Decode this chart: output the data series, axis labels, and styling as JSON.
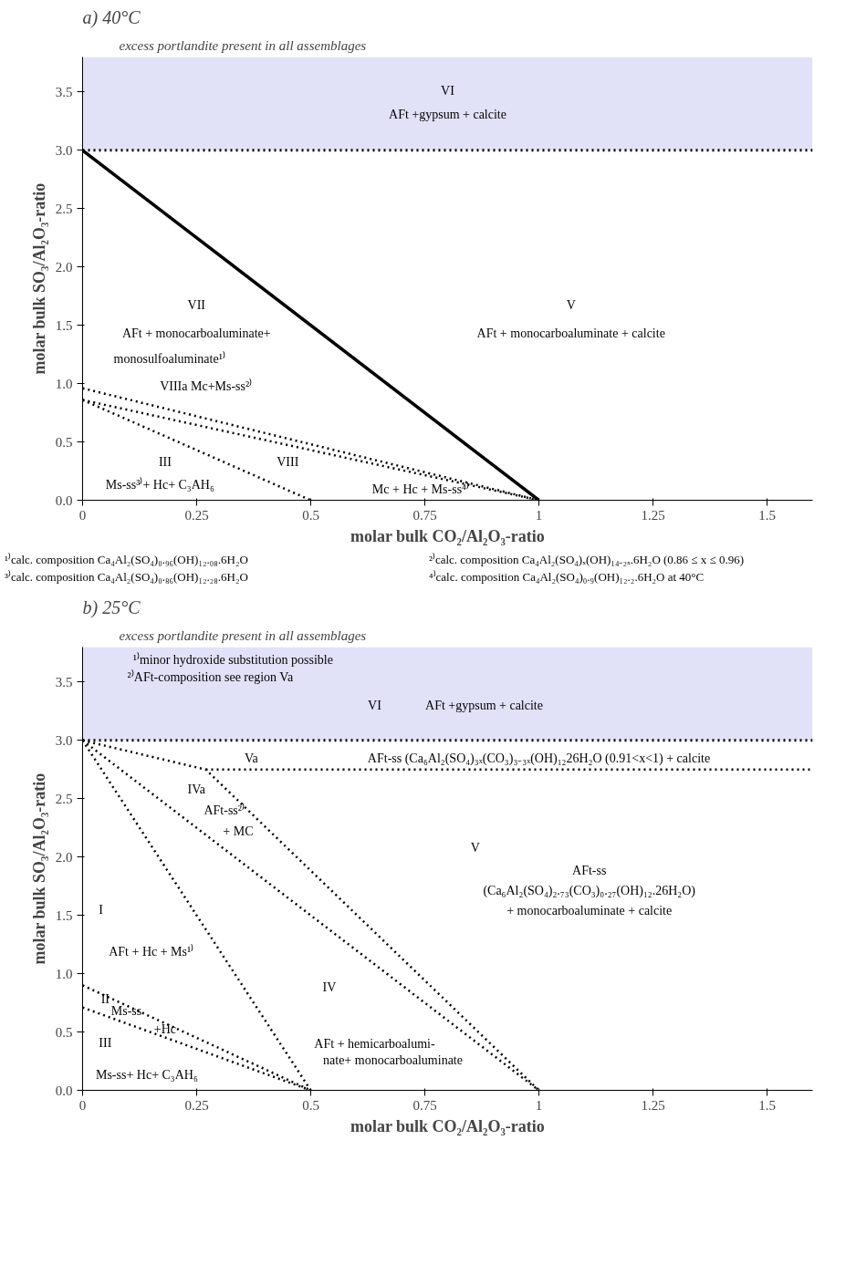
{
  "chart_data": [
    {
      "type": "line",
      "title": "a) 40°C",
      "subtitle": "excess portlandite present in all assemblages",
      "xlabel": "molar bulk CO₂/Al₂O₃-ratio",
      "ylabel": "molar bulk SO₃/Al₂O₃-ratio",
      "xlim": [
        0,
        1.6
      ],
      "ylim": [
        0,
        3.8
      ],
      "xticks": [
        0,
        0.25,
        0.5,
        0.75,
        1,
        1.25,
        1.5
      ],
      "yticks": [
        {
          "value": 0,
          "label": "0.0"
        },
        0.5,
        {
          "value": 1,
          "label": "1.0"
        },
        1.5,
        {
          "value": 2,
          "label": "2.0"
        },
        2.5,
        {
          "value": 3,
          "label": "3.0"
        },
        3.5
      ],
      "grid": false,
      "series": [
        {
          "color": "#000000",
          "line_style": "solid",
          "x": [
            0,
            1
          ],
          "values": [
            3.0,
            0
          ]
        },
        {
          "color": "#000000",
          "line_style": "dotted",
          "x": [
            0,
            1
          ],
          "values": [
            0.96,
            0
          ]
        },
        {
          "color": "#000000",
          "line_style": "dotted",
          "x": [
            0,
            1
          ],
          "values": [
            0.86,
            0
          ]
        },
        {
          "color": "#000000",
          "line_style": "dotted",
          "x": [
            0,
            0.5
          ],
          "values": [
            0.86,
            0
          ]
        }
      ],
      "ref_lines": [
        {
          "axis": "y",
          "value": 3.0,
          "color": "#000000",
          "line_style": "dotted"
        }
      ],
      "bands": [
        {
          "axis": "y",
          "from": 3.0,
          "to": 3.8,
          "color": "#e1e1f8"
        }
      ],
      "annotations": [
        "VI",
        "AFt +gypsum + calcite",
        "VII",
        "AFt + monocarboaluminate+",
        "monosulfoaluminate¹⁾",
        "V",
        "AFt + monocarboaluminate + calcite",
        "VIIIa Mc+Ms-ss²⁾",
        "III",
        "Ms-ss³⁾+ Hc+ C₃AH₆",
        "VIII",
        "Mc + Hc + Ms-ss⁴⁾",
        "¹⁾calc. composition Ca₄Al₂(SO₄)₀.₉₆(OH)₁₂.₀₈.6H₂O",
        "²⁾calc. composition Ca₄Al₂(SO₄)ₓ(OH)₁₄₋₂ₓ.6H₂O (0.86 ≤ x ≤ 0.96)",
        "³⁾calc. composition Ca₄Al₂(SO₄)₀.₈₆(OH)₁₂.₂₈.6H₂O",
        "⁴⁾calc. composition Ca₄Al₂(SO₄)₀.₉(OH)₁₂.₂.6H₂O at 40°C"
      ]
    },
    {
      "type": "line",
      "title": "b) 25°C",
      "subtitle": "excess portlandite present in all assemblages",
      "xlabel": "molar bulk CO₂/Al₂O₃-ratio",
      "ylabel": "molar bulk SO₃/Al₂O₃-ratio",
      "xlim": [
        0,
        1.6
      ],
      "ylim": [
        0,
        3.8
      ],
      "xticks": [
        0,
        0.25,
        0.5,
        0.75,
        1,
        1.25,
        1.5
      ],
      "yticks": [
        {
          "value": 0,
          "label": "0.0"
        },
        0.5,
        {
          "value": 1,
          "label": "1.0"
        },
        1.5,
        {
          "value": 2,
          "label": "2.0"
        },
        2.5,
        {
          "value": 3,
          "label": "3.0"
        },
        3.5
      ],
      "grid": false,
      "series": [
        {
          "color": "#000000",
          "line_style": "dotted",
          "x": [
            0,
            0.5
          ],
          "values": [
            3.0,
            0
          ]
        },
        {
          "color": "#000000",
          "line_style": "dotted",
          "x": [
            0,
            1
          ],
          "values": [
            3.0,
            0
          ]
        },
        {
          "color": "#000000",
          "line_style": "dotted",
          "x": [
            0,
            0.27,
            1
          ],
          "values": [
            3.0,
            2.75,
            0
          ]
        },
        {
          "color": "#000000",
          "line_style": "dotted",
          "x": [
            0.27,
            1.6
          ],
          "values": [
            2.75,
            2.75
          ]
        },
        {
          "color": "#000000",
          "line_style": "dotted",
          "x": [
            0,
            0.5
          ],
          "values": [
            0.9,
            0
          ]
        },
        {
          "color": "#000000",
          "line_style": "dotted",
          "x": [
            0,
            0.5
          ],
          "values": [
            0.71,
            0
          ]
        }
      ],
      "ref_lines": [
        {
          "axis": "y",
          "value": 3.0,
          "color": "#000000",
          "line_style": "dotted"
        }
      ],
      "bands": [
        {
          "axis": "y",
          "from": 3.0,
          "to": 3.8,
          "color": "#e1e1f8"
        }
      ],
      "annotations": [
        "¹⁾minor hydroxide substitution possible",
        "²⁾AFt-composition see region Va",
        "VI",
        "AFt +gypsum + calcite",
        "Va",
        "AFt-ss (Ca₆Al₂(SO₄)₃ₓ(CO₃)₃₋₃ₓ(OH)₁₂26H₂O (0.91<x<1) + calcite",
        "IVa",
        "AFt-ss²⁾",
        "+ MC",
        "V",
        "AFt-ss",
        "(Ca₆Al₂(SO₄)₂.₇₃(CO₃)₀.₂₇(OH)₁₂.26H₂O)",
        "+ monocarboaluminate + calcite",
        "I",
        "AFt + Hc + Ms¹⁾",
        "IV",
        "AFt + hemicarboalumi-",
        "nate+ monocarboaluminate",
        "II",
        "Ms-ss",
        "+Hc",
        "III",
        "Ms-ss+ Hc+ C₃AH₆"
      ]
    }
  ]
}
